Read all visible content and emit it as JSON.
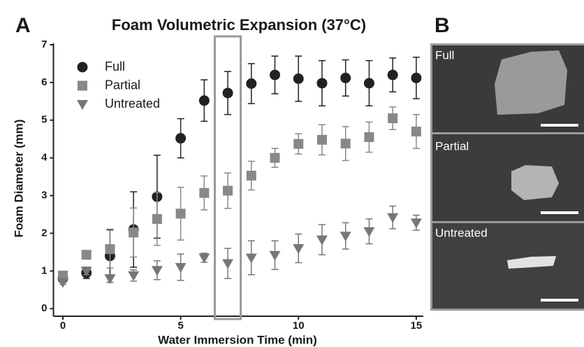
{
  "chart_data": {
    "type": "scatter",
    "title": "Foam Volumetric Expansion (37°C)",
    "xlabel": "Water Immersion Time (min)",
    "ylabel": "Foam Diameter (mm)",
    "panel_labels": [
      "A",
      "B"
    ],
    "photo_labels": [
      "Full",
      "Partial",
      "Untreated"
    ],
    "x": [
      0,
      1,
      2,
      3,
      4,
      5,
      6,
      7,
      8,
      9,
      10,
      11,
      12,
      13,
      14,
      15
    ],
    "series": [
      {
        "name": "Full",
        "color": "#222222",
        "marker": "circle",
        "values": [
          0.8,
          0.95,
          1.4,
          2.1,
          2.97,
          4.52,
          5.52,
          5.72,
          5.97,
          6.2,
          6.1,
          5.98,
          6.12,
          5.98,
          6.2,
          6.12
        ],
        "errors": [
          0.08,
          0.15,
          0.7,
          1.0,
          1.1,
          0.52,
          0.55,
          0.57,
          0.53,
          0.5,
          0.6,
          0.6,
          0.48,
          0.6,
          0.45,
          0.55
        ]
      },
      {
        "name": "Partial",
        "color": "#888888",
        "marker": "square",
        "values": [
          0.88,
          1.43,
          1.58,
          2.02,
          2.38,
          2.52,
          3.07,
          3.13,
          3.53,
          4.0,
          4.37,
          4.48,
          4.38,
          4.55,
          5.05,
          4.7
        ],
        "errors": [
          0.08,
          0.1,
          0.5,
          0.65,
          0.7,
          0.7,
          0.45,
          0.47,
          0.38,
          0.25,
          0.27,
          0.4,
          0.45,
          0.4,
          0.3,
          0.45
        ]
      },
      {
        "name": "Untreated",
        "color": "#777777",
        "marker": "triangle-down",
        "values": [
          0.7,
          1.0,
          0.8,
          0.88,
          1.02,
          1.1,
          1.35,
          1.2,
          1.35,
          1.42,
          1.6,
          1.83,
          1.93,
          2.05,
          2.42,
          2.28
        ],
        "errors": [
          0.05,
          0.1,
          0.1,
          0.15,
          0.25,
          0.35,
          0.12,
          0.4,
          0.45,
          0.38,
          0.38,
          0.4,
          0.35,
          0.33,
          0.3,
          0.2
        ]
      }
    ],
    "xlim": [
      -0.4,
      15.3
    ],
    "ylim": [
      -0.2,
      7
    ],
    "xticks": [
      0,
      5,
      10,
      15
    ],
    "yticks": [
      0,
      1,
      2,
      3,
      4,
      5,
      6,
      7
    ],
    "highlight_x": 7,
    "legend": "upper left"
  }
}
